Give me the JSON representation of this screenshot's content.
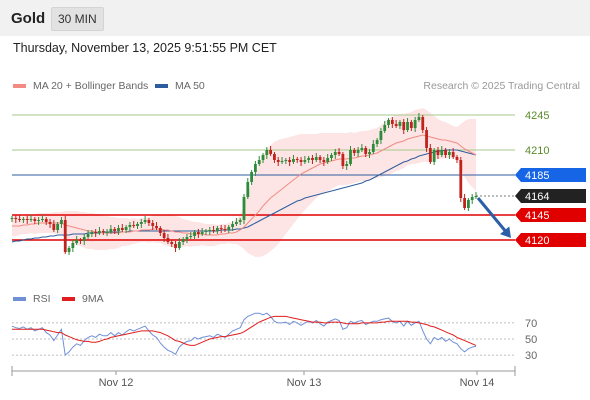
{
  "header": {
    "instrument": "Gold",
    "timeframe": "30 MIN"
  },
  "datetime": "Thursday, November 13, 2025 9:51:55 PM CET",
  "credit": "Research © 2025 Trading Central",
  "legend": [
    {
      "label": "MA 20 + Bollinger Bands",
      "color": "#f28b82"
    },
    {
      "label": "MA 50",
      "color": "#2d5d9f"
    }
  ],
  "rsi_legend": [
    {
      "label": "RSI",
      "color": "#6f8fd6"
    },
    {
      "label": "9MA",
      "color": "#e11d1d"
    }
  ],
  "colors": {
    "up": "#2e8b3a",
    "down": "#c0231b",
    "resistance": "#a6c98a",
    "support": "#e00000",
    "pivot": "#2d5d9f",
    "last": "#222222",
    "band": "#fde0e0",
    "ma20": "#f28b82",
    "ma50": "#2d5d9f"
  },
  "chart_data": [
    {
      "type": "candlestick",
      "x_ticks": [
        "Nov 12",
        "Nov 13",
        "Nov 14"
      ],
      "y_range": [
        4092,
        4268
      ],
      "levels": [
        {
          "value": 4245,
          "label": "4245",
          "kind": "resistance"
        },
        {
          "value": 4210,
          "label": "4210",
          "kind": "resistance"
        },
        {
          "value": 4185,
          "label": "4185",
          "kind": "pivot"
        },
        {
          "value": 4164,
          "label": "4164",
          "kind": "last"
        },
        {
          "value": 4145,
          "label": "4145",
          "kind": "support"
        },
        {
          "value": 4120,
          "label": "4120",
          "kind": "support"
        }
      ],
      "projection": {
        "from": 4164,
        "to": 4120
      },
      "closes": [
        4142,
        4141,
        4140,
        4141,
        4140,
        4141,
        4139,
        4140,
        4141,
        4138,
        4136,
        4130,
        4136,
        4140,
        4108,
        4112,
        4117,
        4120,
        4119,
        4123,
        4126,
        4128,
        4127,
        4129,
        4128,
        4128,
        4131,
        4129,
        4132,
        4130,
        4133,
        4135,
        4134,
        4136,
        4138,
        4140,
        4137,
        4134,
        4132,
        4127,
        4122,
        4118,
        4116,
        4112,
        4118,
        4121,
        4123,
        4124,
        4128,
        4126,
        4128,
        4129,
        4130,
        4129,
        4132,
        4131,
        4130,
        4133,
        4136,
        4138,
        4140,
        4163,
        4178,
        4188,
        4196,
        4200,
        4205,
        4210,
        4206,
        4200,
        4198,
        4199,
        4200,
        4198,
        4201,
        4200,
        4198,
        4200,
        4202,
        4200,
        4203,
        4200,
        4198,
        4202,
        4205,
        4208,
        4206,
        4194,
        4196,
        4210,
        4207,
        4210,
        4212,
        4206,
        4208,
        4216,
        4220,
        4229,
        4235,
        4240,
        4236,
        4234,
        4238,
        4230,
        4238,
        4232,
        4240,
        4243,
        4230,
        4212,
        4198,
        4210,
        4205,
        4210,
        4205,
        4208,
        4203,
        4200,
        4162,
        4152,
        4160,
        4163,
        4164
      ],
      "ma20": [
        4134,
        4134,
        4134,
        4135,
        4135,
        4136,
        4136,
        4137,
        4137,
        4137,
        4137,
        4137,
        4137,
        4137,
        4135,
        4134,
        4133,
        4132,
        4131,
        4130,
        4129,
        4129,
        4128,
        4128,
        4127,
        4127,
        4127,
        4127,
        4127,
        4128,
        4128,
        4128,
        4129,
        4129,
        4130,
        4130,
        4130,
        4131,
        4131,
        4131,
        4130,
        4130,
        4129,
        4128,
        4128,
        4127,
        4127,
        4126,
        4126,
        4126,
        4126,
        4125,
        4125,
        4125,
        4125,
        4126,
        4126,
        4127,
        4127,
        4128,
        4130,
        4133,
        4137,
        4141,
        4145,
        4149,
        4154,
        4158,
        4162,
        4165,
        4168,
        4171,
        4174,
        4177,
        4180,
        4183,
        4186,
        4188,
        4190,
        4192,
        4194,
        4196,
        4197,
        4198,
        4199,
        4200,
        4201,
        4201,
        4201,
        4202,
        4202,
        4203,
        4204,
        4204,
        4205,
        4206,
        4207,
        4209,
        4211,
        4213,
        4215,
        4217,
        4218,
        4219,
        4221,
        4222,
        4223,
        4224,
        4225,
        4224,
        4223,
        4222,
        4221,
        4220,
        4220,
        4219,
        4218,
        4217,
        4214,
        4211,
        4209,
        4207,
        4205
      ],
      "ma50": [
        4118,
        4119,
        4119,
        4120,
        4121,
        4121,
        4122,
        4122,
        4123,
        4123,
        4124,
        4124,
        4125,
        4125,
        4125,
        4125,
        4126,
        4126,
        4126,
        4126,
        4127,
        4127,
        4127,
        4127,
        4128,
        4128,
        4128,
        4128,
        4128,
        4128,
        4128,
        4129,
        4129,
        4129,
        4129,
        4129,
        4129,
        4129,
        4129,
        4129,
        4129,
        4129,
        4129,
        4129,
        4129,
        4129,
        4129,
        4129,
        4129,
        4129,
        4129,
        4129,
        4129,
        4129,
        4129,
        4130,
        4130,
        4130,
        4130,
        4131,
        4131,
        4132,
        4133,
        4135,
        4137,
        4139,
        4141,
        4143,
        4145,
        4147,
        4149,
        4151,
        4153,
        4155,
        4157,
        4159,
        4160,
        4162,
        4163,
        4164,
        4165,
        4166,
        4167,
        4168,
        4169,
        4170,
        4171,
        4172,
        4173,
        4174,
        4175,
        4176,
        4177,
        4179,
        4180,
        4182,
        4184,
        4186,
        4188,
        4190,
        4192,
        4194,
        4196,
        4198,
        4199,
        4201,
        4202,
        4204,
        4205,
        4206,
        4207,
        4208,
        4209,
        4209,
        4210,
        4210,
        4210,
        4210,
        4209,
        4208,
        4207,
        4206,
        4205
      ],
      "band_width": [
        10,
        10,
        9,
        9,
        9,
        9,
        10,
        10,
        10,
        10,
        10,
        11,
        11,
        11,
        14,
        15,
        16,
        17,
        17,
        18,
        18,
        18,
        18,
        18,
        17,
        17,
        16,
        16,
        15,
        14,
        14,
        13,
        13,
        12,
        12,
        12,
        13,
        13,
        14,
        14,
        15,
        16,
        16,
        16,
        15,
        14,
        13,
        13,
        12,
        12,
        11,
        11,
        11,
        11,
        10,
        10,
        10,
        10,
        11,
        12,
        16,
        22,
        30,
        36,
        42,
        46,
        50,
        52,
        53,
        53,
        52,
        50,
        48,
        46,
        44,
        42,
        40,
        38,
        36,
        34,
        32,
        31,
        30,
        29,
        28,
        27,
        26,
        26,
        26,
        26,
        25,
        25,
        25,
        25,
        25,
        25,
        25,
        26,
        27,
        28,
        28,
        28,
        28,
        27,
        26,
        26,
        27,
        27,
        27,
        26,
        24,
        22,
        20,
        19,
        18,
        17,
        16,
        16,
        22,
        28,
        32,
        34,
        36
      ]
    },
    {
      "type": "line",
      "name": "RSI",
      "y_ticks": [
        70,
        50,
        30
      ],
      "y_range": [
        14,
        86
      ],
      "rsi": [
        66,
        64,
        63,
        65,
        62,
        64,
        60,
        62,
        64,
        58,
        55,
        48,
        55,
        62,
        30,
        34,
        40,
        44,
        42,
        48,
        52,
        54,
        52,
        56,
        54,
        54,
        58,
        54,
        58,
        55,
        59,
        62,
        60,
        62,
        64,
        66,
        60,
        55,
        52,
        45,
        40,
        36,
        34,
        31,
        40,
        44,
        47,
        48,
        52,
        50,
        52,
        53,
        54,
        52,
        56,
        54,
        52,
        56,
        60,
        62,
        64,
        74,
        78,
        80,
        82,
        82,
        80,
        82,
        78,
        72,
        70,
        70,
        71,
        68,
        72,
        70,
        67,
        70,
        72,
        70,
        73,
        69,
        66,
        71,
        73,
        75,
        73,
        62,
        64,
        72,
        70,
        72,
        73,
        68,
        70,
        72,
        72,
        74,
        75,
        76,
        72,
        70,
        72,
        66,
        72,
        67,
        70,
        72,
        60,
        50,
        44,
        52,
        49,
        52,
        47,
        50,
        46,
        44,
        38,
        34,
        38,
        40,
        41
      ],
      "rsi_ma": [
        62,
        62,
        62,
        62,
        62,
        62,
        62,
        62,
        62,
        61,
        60,
        59,
        58,
        58,
        55,
        53,
        51,
        49,
        48,
        47,
        47,
        46,
        46,
        47,
        49,
        50,
        52,
        53,
        54,
        55,
        56,
        57,
        58,
        59,
        60,
        60,
        60,
        60,
        59,
        58,
        56,
        54,
        51,
        48,
        47,
        45,
        43,
        42,
        42,
        44,
        46,
        48,
        50,
        51,
        52,
        53,
        53,
        54,
        55,
        56,
        57,
        59,
        62,
        65,
        68,
        71,
        73,
        75,
        77,
        78,
        78,
        78,
        78,
        77,
        76,
        75,
        74,
        73,
        72,
        71,
        71,
        71,
        70,
        70,
        71,
        71,
        71,
        70,
        69,
        69,
        69,
        69,
        70,
        70,
        70,
        70,
        70,
        71,
        71,
        72,
        72,
        72,
        72,
        72,
        72,
        71,
        71,
        70,
        69,
        68,
        66,
        65,
        63,
        61,
        59,
        57,
        55,
        52,
        50,
        48,
        46,
        44,
        42
      ]
    }
  ]
}
